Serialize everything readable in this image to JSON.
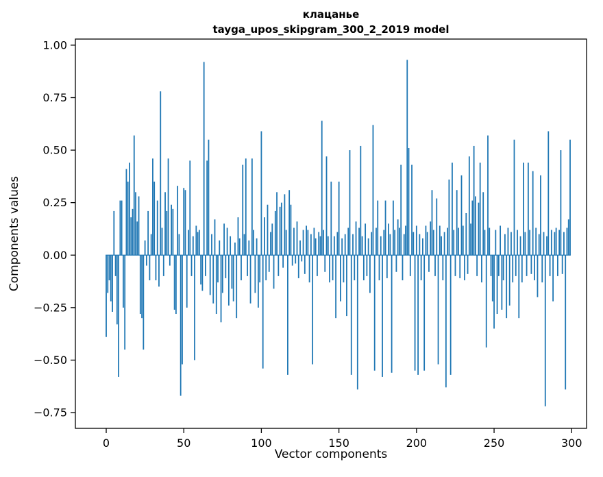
{
  "figure": {
    "title": "клацанье",
    "subtitle": "tayga_upos_skipgram_300_2_2019 model",
    "xlabel": "Vector components",
    "ylabel": "Components values"
  },
  "chart_data": {
    "type": "bar",
    "title": "клацанье",
    "subtitle": "tayga_upos_skipgram_300_2_2019 model",
    "xlabel": "Vector components",
    "ylabel": "Components values",
    "bar_color": "#1f77b4",
    "x_start": 0,
    "n_components": 300,
    "xlim": [
      -15,
      314
    ],
    "ylim": [
      -0.825,
      1.029
    ],
    "x_ticks": [
      0,
      50,
      100,
      150,
      200,
      250,
      300
    ],
    "x_tick_labels": [
      "0",
      "50",
      "100",
      "150",
      "200",
      "250",
      "300"
    ],
    "y_ticks": [
      -0.75,
      -0.5,
      -0.25,
      0.0,
      0.25,
      0.5,
      0.75,
      1.0
    ],
    "y_tick_labels": [
      "−0.75",
      "−0.50",
      "−0.25",
      "0.00",
      "0.25",
      "0.50",
      "0.75",
      "1.00"
    ],
    "grid": false,
    "legend": false,
    "values": [
      -0.39,
      -0.18,
      -0.12,
      -0.22,
      -0.27,
      0.21,
      -0.1,
      -0.33,
      -0.58,
      0.26,
      0.26,
      -0.25,
      -0.45,
      0.41,
      0.35,
      0.44,
      0.18,
      0.22,
      0.57,
      0.3,
      0.16,
      0.28,
      -0.28,
      -0.3,
      -0.45,
      0.07,
      -0.05,
      0.21,
      -0.12,
      0.1,
      0.46,
      0.35,
      -0.12,
      0.26,
      -0.15,
      0.78,
      0.13,
      -0.1,
      0.3,
      0.21,
      0.46,
      -0.05,
      0.24,
      0.22,
      -0.26,
      -0.28,
      0.33,
      0.1,
      -0.67,
      -0.52,
      0.32,
      0.31,
      -0.25,
      0.12,
      0.45,
      -0.1,
      0.09,
      -0.5,
      0.14,
      0.11,
      0.12,
      -0.14,
      -0.17,
      0.92,
      -0.1,
      0.45,
      0.55,
      -0.19,
      0.1,
      -0.23,
      0.17,
      -0.28,
      -0.13,
      0.07,
      -0.32,
      -0.18,
      0.15,
      -0.11,
      0.13,
      -0.24,
      0.09,
      -0.16,
      -0.22,
      0.06,
      -0.3,
      0.18,
      0.08,
      -0.12,
      0.43,
      0.1,
      0.46,
      -0.1,
      0.07,
      -0.23,
      0.46,
      0.12,
      -0.18,
      0.08,
      -0.25,
      -0.13,
      0.59,
      -0.54,
      0.18,
      -0.12,
      0.24,
      -0.08,
      0.11,
      0.15,
      -0.16,
      0.21,
      0.3,
      -0.1,
      0.23,
      0.25,
      -0.06,
      0.29,
      0.12,
      -0.57,
      0.31,
      0.24,
      -0.05,
      0.13,
      -0.04,
      0.16,
      -0.11,
      0.07,
      -0.03,
      0.12,
      -0.09,
      0.14,
      0.12,
      -0.13,
      0.1,
      -0.52,
      0.13,
      0.08,
      -0.1,
      0.11,
      0.09,
      0.64,
      0.12,
      -0.08,
      0.47,
      0.09,
      -0.13,
      0.35,
      -0.12,
      0.09,
      -0.3,
      0.11,
      0.35,
      -0.22,
      0.08,
      -0.13,
      0.1,
      -0.29,
      0.13,
      0.5,
      -0.57,
      0.1,
      -0.12,
      0.16,
      -0.64,
      0.13,
      0.52,
      0.09,
      -0.12,
      0.15,
      -0.1,
      0.08,
      -0.18,
      0.11,
      0.62,
      -0.55,
      0.13,
      0.26,
      -0.12,
      0.09,
      -0.58,
      0.12,
      0.26,
      -0.11,
      0.15,
      0.1,
      -0.56,
      0.26,
      0.12,
      -0.08,
      0.17,
      0.13,
      0.43,
      -0.12,
      0.1,
      0.14,
      0.93,
      0.51,
      -0.1,
      0.43,
      0.11,
      -0.55,
      0.14,
      -0.57,
      0.1,
      -0.12,
      0.08,
      -0.55,
      0.14,
      0.11,
      -0.08,
      0.16,
      0.31,
      0.12,
      -0.1,
      0.27,
      -0.52,
      0.14,
      0.09,
      -0.12,
      0.11,
      -0.63,
      0.13,
      0.36,
      -0.57,
      0.44,
      0.12,
      -0.1,
      0.31,
      0.13,
      -0.11,
      0.38,
      0.14,
      -0.12,
      0.2,
      -0.09,
      0.47,
      0.15,
      0.26,
      0.52,
      0.28,
      -0.1,
      0.25,
      0.44,
      -0.13,
      0.3,
      0.12,
      -0.44,
      0.57,
      0.13,
      -0.1,
      -0.22,
      -0.35,
      0.12,
      -0.28,
      -0.1,
      0.14,
      -0.26,
      -0.12,
      0.1,
      -0.3,
      0.13,
      -0.24,
      0.11,
      -0.13,
      0.55,
      -0.1,
      0.12,
      -0.3,
      0.09,
      -0.13,
      0.44,
      0.11,
      -0.1,
      0.44,
      0.12,
      -0.09,
      0.4,
      -0.12,
      0.13,
      -0.2,
      0.1,
      0.38,
      -0.13,
      0.11,
      -0.72,
      0.09,
      0.59,
      -0.1,
      0.12,
      -0.22,
      0.11,
      0.13,
      -0.1,
      0.12,
      0.5,
      -0.09,
      0.11,
      -0.64,
      0.13,
      0.17,
      0.55
    ]
  }
}
